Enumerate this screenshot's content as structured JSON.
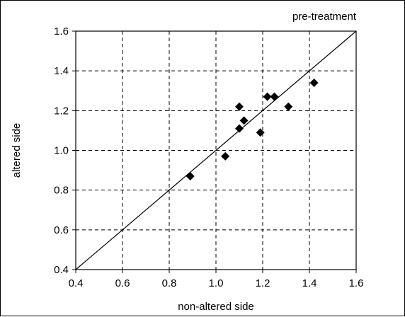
{
  "chart_data": {
    "type": "scatter",
    "title": "pre-treatment",
    "xlabel": "non-altered side",
    "ylabel": "altered side",
    "xlim": [
      0.4,
      1.6
    ],
    "ylim": [
      0.4,
      1.6
    ],
    "xticks": [
      "0.4",
      "0.6",
      "0.8",
      "1.0",
      "1.2",
      "1.4",
      "1.6"
    ],
    "yticks": [
      "0.4",
      "0.6",
      "0.8",
      "1.0",
      "1.2",
      "1.4",
      "1.6"
    ],
    "grid": true,
    "grid_style": "dashed",
    "reference_line": "y = x",
    "marker": "diamond",
    "marker_color": "#000000",
    "points": [
      {
        "x": 0.89,
        "y": 0.87
      },
      {
        "x": 1.04,
        "y": 0.97
      },
      {
        "x": 1.1,
        "y": 1.11
      },
      {
        "x": 1.1,
        "y": 1.22
      },
      {
        "x": 1.12,
        "y": 1.15
      },
      {
        "x": 1.19,
        "y": 1.09
      },
      {
        "x": 1.22,
        "y": 1.27
      },
      {
        "x": 1.25,
        "y": 1.27
      },
      {
        "x": 1.31,
        "y": 1.22
      },
      {
        "x": 1.42,
        "y": 1.34
      }
    ]
  }
}
